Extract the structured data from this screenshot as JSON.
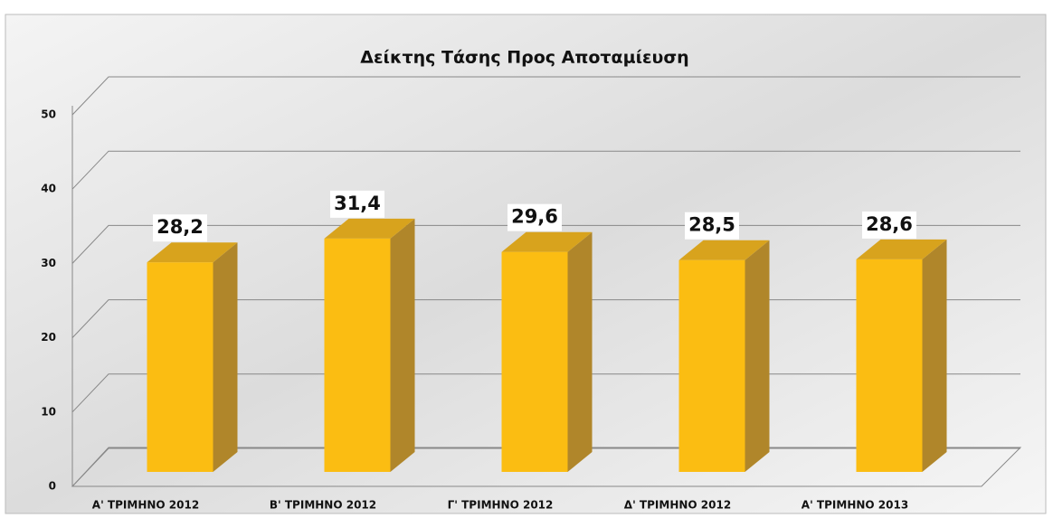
{
  "chart_data": {
    "type": "bar",
    "title": "Δείκτης Τάσης Προς Αποταμίευση",
    "categories": [
      "Α' ΤΡΙΜΗΝΟ 2012",
      "Β' ΤΡΙΜΗΝΟ 2012",
      "Γ' ΤΡΙΜΗΝΟ 2012",
      "Δ' ΤΡΙΜΗΝΟ 2012",
      "Α' ΤΡΙΜΗΝΟ 2013"
    ],
    "values": [
      28.2,
      31.4,
      29.6,
      28.5,
      28.6
    ],
    "value_labels": [
      "28,2",
      "31,4",
      "29,6",
      "28,5",
      "28,6"
    ],
    "color": "#fbbd12",
    "ylim": [
      0,
      50
    ],
    "yticks": [
      0,
      10,
      20,
      30,
      40,
      50
    ],
    "grid": true
  }
}
